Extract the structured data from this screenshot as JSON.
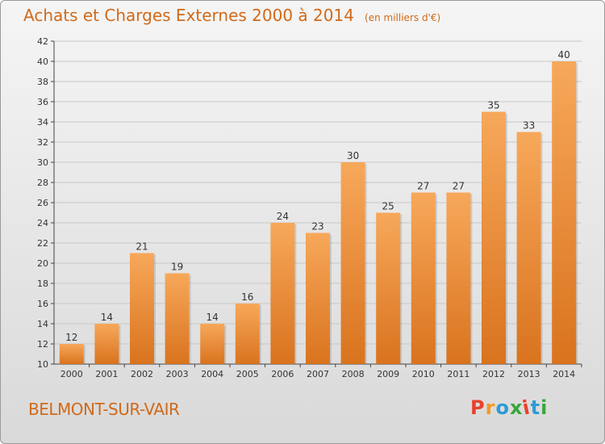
{
  "header": {
    "title": "Achats et Charges Externes 2000 à 2014",
    "subtitle": "(en milliers d'€)"
  },
  "footer": {
    "commune": "BELMONT-SUR-VAIR",
    "logo_text": "Proxiti"
  },
  "colors": {
    "accent": "#d06a1a",
    "bar_light": "#f7a85a",
    "bar_dark": "#d9731e",
    "logo": [
      "#e8412c",
      "#f29a1f",
      "#2e9bd6",
      "#3aa63a",
      "#e8412c",
      "#2e9bd6",
      "#3aa63a"
    ]
  },
  "chart_data": {
    "type": "bar",
    "title": "Achats et Charges Externes 2000 à 2014",
    "subtitle": "(en milliers d'€)",
    "categories": [
      "2000",
      "2001",
      "2002",
      "2003",
      "2004",
      "2005",
      "2006",
      "2007",
      "2008",
      "2009",
      "2010",
      "2011",
      "2012",
      "2013",
      "2014"
    ],
    "values": [
      12,
      14,
      21,
      19,
      14,
      16,
      24,
      23,
      30,
      25,
      27,
      27,
      35,
      33,
      40
    ],
    "ylim": [
      10,
      42
    ],
    "yticks": [
      10,
      12,
      14,
      16,
      18,
      20,
      22,
      24,
      26,
      28,
      30,
      32,
      34,
      36,
      38,
      40,
      42
    ],
    "grid": true
  }
}
